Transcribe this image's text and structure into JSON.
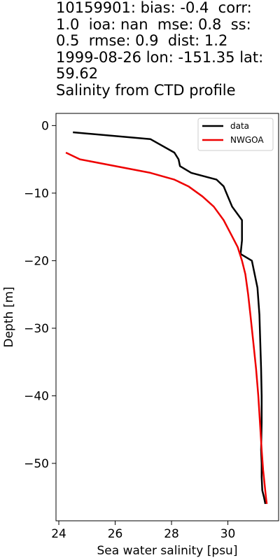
{
  "chart_data": {
    "type": "line",
    "title_lines": [
      "10159901: bias: -0.4  corr:",
      "1.0  ioa: nan  mse: 0.8  ss:",
      "0.5  rmse: 0.9  dist: 1.2",
      "1999-08-26 lon: -151.35 lat:",
      "59.62",
      "Salinity from CTD profile"
    ],
    "xlabel": "Sea water salinity [psu]",
    "ylabel": "Depth [m]",
    "xlim": [
      23.9,
      31.8
    ],
    "ylim": [
      -58.5,
      1.8
    ],
    "xticks": [
      24,
      26,
      28,
      30
    ],
    "xtick_labels": [
      "24",
      "26",
      "28",
      "30"
    ],
    "yticks": [
      0,
      -10,
      -20,
      -30,
      -40,
      -50
    ],
    "ytick_labels": [
      "0",
      "−10",
      "−20",
      "−30",
      "−40",
      "−50"
    ],
    "legend_position": "top-right",
    "series": [
      {
        "name": "data",
        "color": "#000000",
        "x": [
          24.5,
          27.25,
          28.1,
          28.25,
          28.3,
          28.7,
          29.6,
          29.85,
          29.95,
          30.15,
          30.5,
          30.5,
          30.45,
          30.85,
          31.05,
          31.12,
          31.15,
          31.18,
          31.2,
          31.2,
          31.18,
          31.2,
          31.2,
          31.22,
          31.28,
          31.33
        ],
        "y": [
          -1,
          -2,
          -4,
          -5,
          -6,
          -7,
          -8,
          -9,
          -10,
          -12,
          -14,
          -17,
          -19,
          -20,
          -24,
          -28,
          -32,
          -36,
          -40,
          -44,
          -48,
          -50,
          -52,
          -54,
          -55,
          -56
        ]
      },
      {
        "name": "NWGOA",
        "color": "#ee0000",
        "x": [
          24.25,
          24.75,
          27.25,
          28.1,
          28.6,
          29.1,
          29.5,
          29.85,
          30.1,
          30.35,
          30.5,
          30.62,
          30.72,
          30.8,
          30.9,
          31.0,
          31.08,
          31.14,
          31.2,
          31.25,
          31.3,
          31.35,
          31.38
        ],
        "y": [
          -4,
          -5,
          -7,
          -8,
          -9,
          -10.5,
          -12,
          -14,
          -16,
          -18,
          -20,
          -22,
          -25,
          -28,
          -32,
          -36,
          -40,
          -44,
          -48,
          -51,
          -53,
          -55,
          -56
        ]
      }
    ]
  }
}
